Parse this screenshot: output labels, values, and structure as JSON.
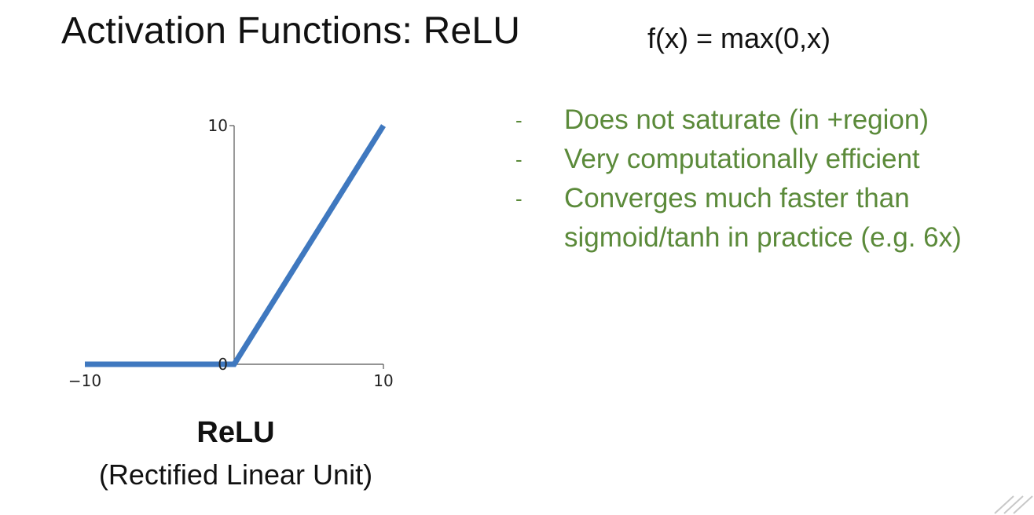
{
  "slide": {
    "title": "Activation Functions: ReLU",
    "formula": "f(x) = max(0,x)",
    "caption_title": "ReLU",
    "caption_subtitle": "(Rectified Linear Unit)",
    "bullet_marker": "-",
    "bullets": [
      "Does not saturate (in +region)",
      "Very computationally efficient",
      "Converges much faster than sigmoid/tanh in practice (e.g. 6x)"
    ],
    "bullet_color": "#5b8a3a"
  },
  "chart_data": {
    "type": "line",
    "title": "",
    "xlabel": "",
    "ylabel": "",
    "xlim": [
      -10,
      10
    ],
    "ylim": [
      0,
      10
    ],
    "x_ticks": [
      "−10",
      "10"
    ],
    "y_ticks": [
      "0",
      "10"
    ],
    "series": [
      {
        "x": [
          -10,
          0,
          10
        ],
        "y": [
          0,
          0,
          10
        ],
        "color": "#3f78bf"
      }
    ],
    "grid": false
  }
}
